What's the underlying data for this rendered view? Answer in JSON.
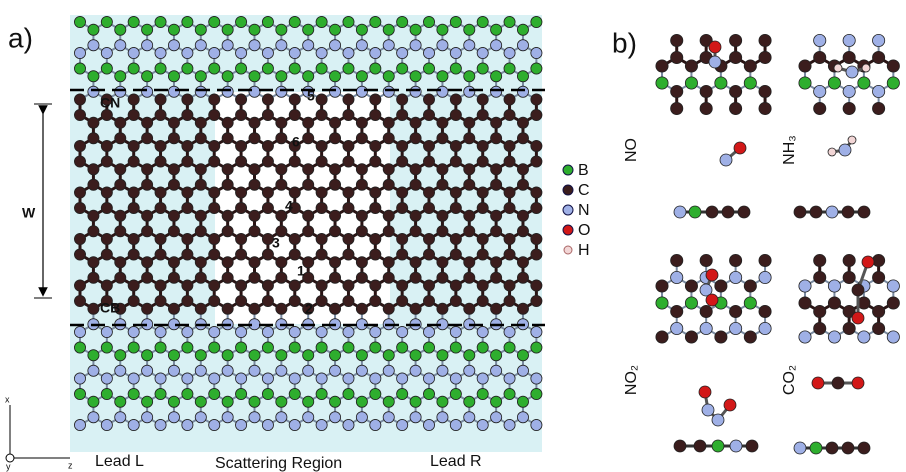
{
  "panel_a": {
    "label": "a)",
    "width_label": "W",
    "edge_labels": [
      "CN",
      "CB"
    ],
    "sites": [
      "1",
      "2",
      "3",
      "4",
      "5",
      "6"
    ],
    "regions": [
      "Lead L",
      "Scattering Region",
      "Lead R"
    ],
    "axes": [
      "x",
      "y",
      "z"
    ]
  },
  "legend": [
    "B",
    "C",
    "N",
    "O",
    "H"
  ],
  "panel_b": {
    "label": "b)",
    "molecules": [
      "NO",
      "NH₃",
      "NO₂",
      "CO₂"
    ]
  }
}
